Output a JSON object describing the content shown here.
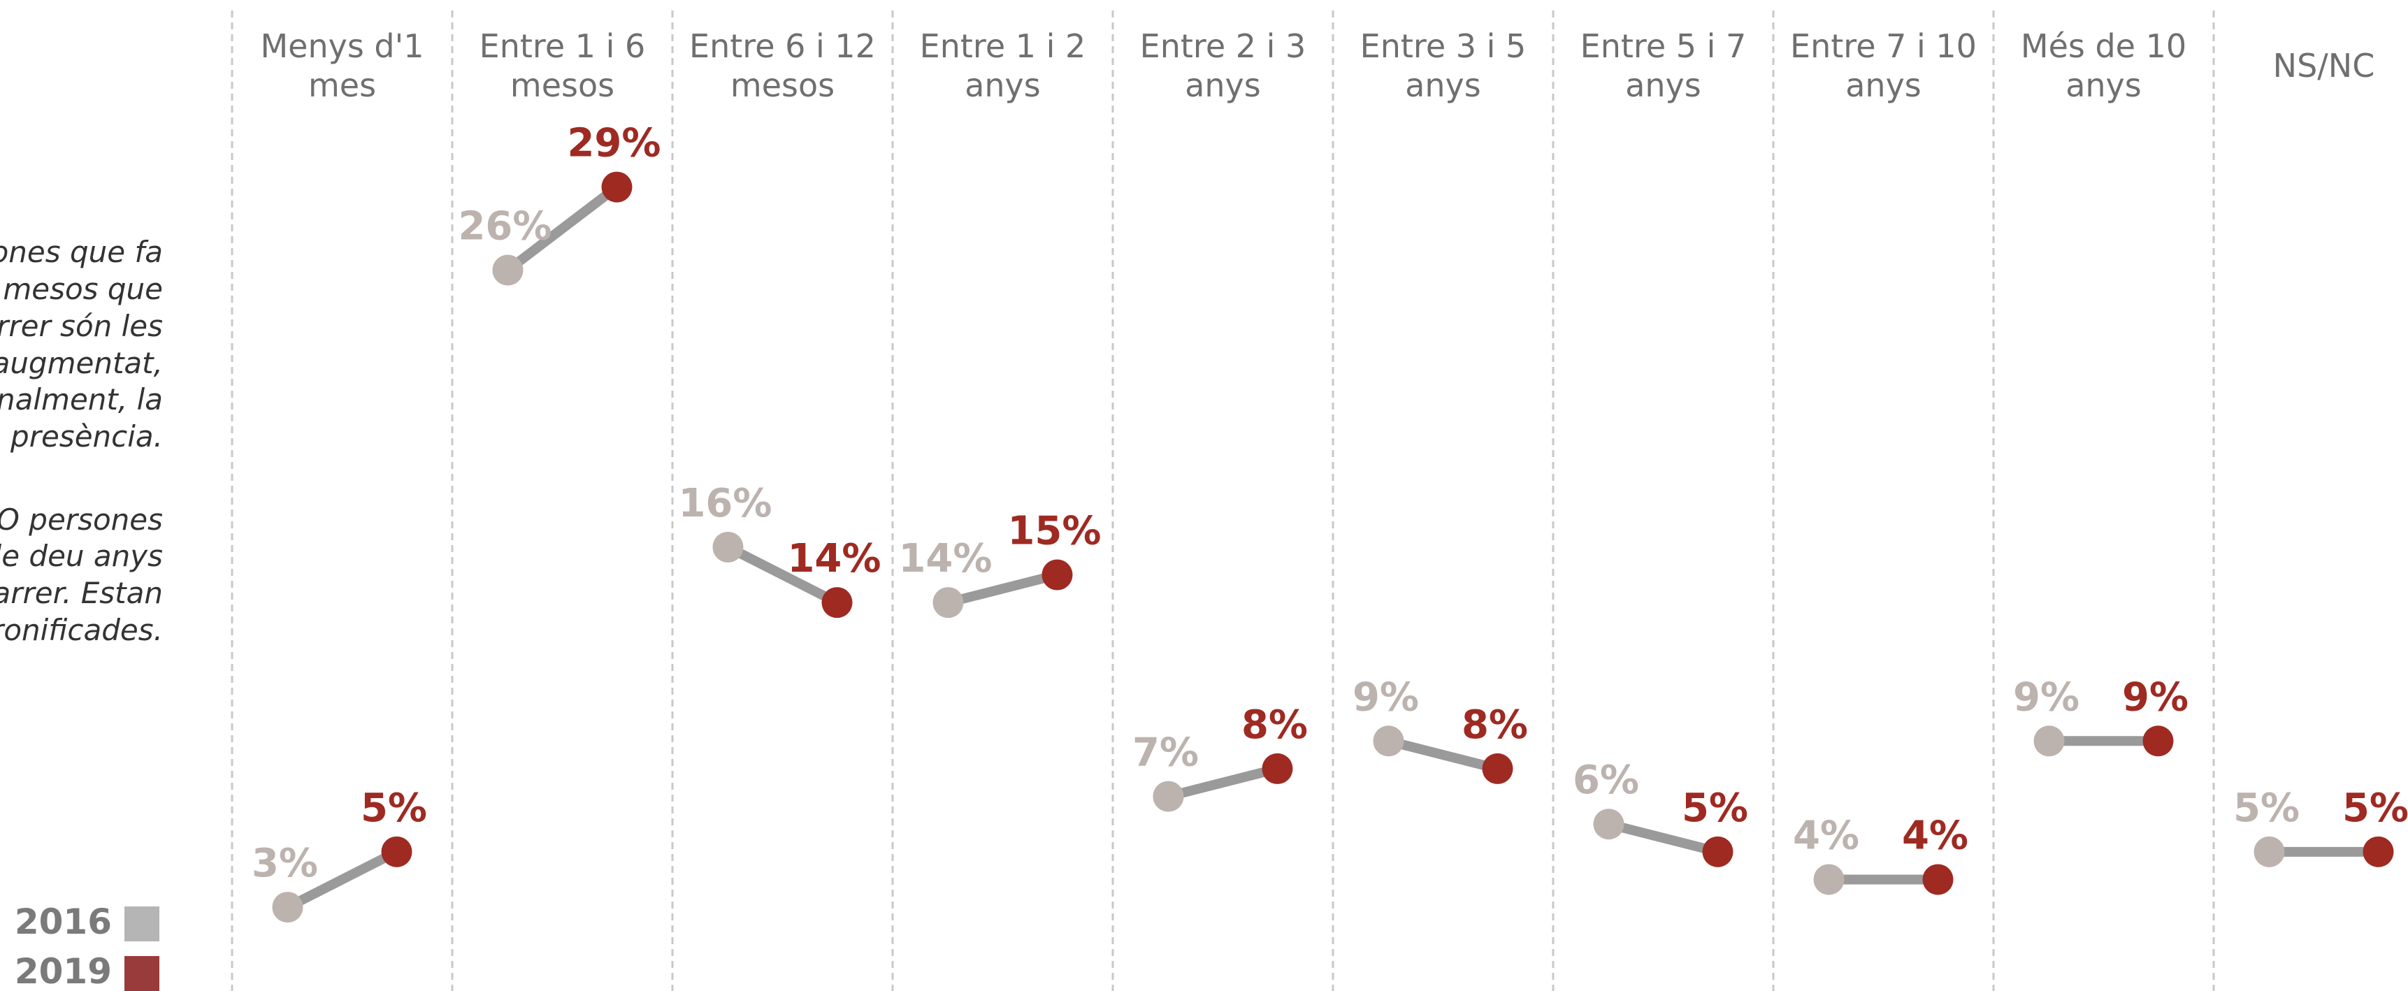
{
  "chart_data": {
    "type": "slope",
    "annotations": [
      "ones que fa",
      "mesos que",
      "rrer són les",
      "augmentat,",
      "nalment, la",
      "a presència.",
      "O persones",
      "le deu anys",
      "arrer. Estan",
      "ronificades."
    ],
    "categories": [
      "Menys d'1\nmes",
      "Entre 1 i 6\nmesos",
      "Entre 6 i 12\nmesos",
      "Entre 1 i 2\nanys",
      "Entre 2 i 3\nanys",
      "Entre 3 i 5\nanys",
      "Entre 5 i 7\nanys",
      "Entre 7 i 10\nanys",
      "Més de 10\nanys",
      "NS/NC"
    ],
    "series": [
      {
        "name": "2016",
        "color": "#bcb2ae",
        "values": [
          3,
          26,
          16,
          14,
          7,
          9,
          6,
          4,
          9,
          5
        ],
        "value_labels": [
          "3%",
          "26%",
          "16%",
          "14%",
          "7%",
          "9%",
          "6%",
          "4%",
          "9%",
          "5%"
        ]
      },
      {
        "name": "2019",
        "color": "#9e2a22",
        "values": [
          5,
          29,
          14,
          15,
          8,
          8,
          5,
          4,
          9,
          5
        ],
        "value_labels": [
          "5%",
          "29%",
          "14%",
          "15%",
          "8%",
          "8%",
          "5%",
          "4%",
          "9%",
          "5%"
        ]
      }
    ],
    "ylim": [
      0,
      30
    ]
  }
}
